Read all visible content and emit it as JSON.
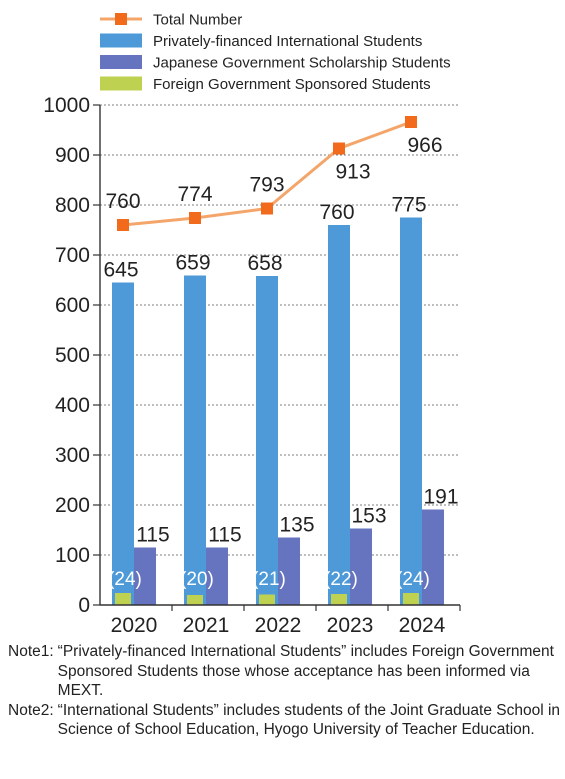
{
  "chart_data": {
    "type": "bar",
    "categories": [
      "2020",
      "2021",
      "2022",
      "2023",
      "2024"
    ],
    "ylim": [
      0,
      1000
    ],
    "yticks": [
      0,
      100,
      200,
      300,
      400,
      500,
      600,
      700,
      800,
      900,
      1000
    ],
    "grid": true,
    "legend_position": "top-left",
    "series": [
      {
        "name": "Total Number",
        "kind": "line",
        "color": "#f4a56a",
        "marker_color": "#f26a1b",
        "values": [
          760,
          774,
          793,
          913,
          966
        ]
      },
      {
        "name": "Privately-financed International Students",
        "kind": "bar",
        "color": "#4e9ad8",
        "values": [
          645,
          659,
          658,
          760,
          775
        ]
      },
      {
        "name": "Japanese Government Scholarship Students",
        "kind": "bar",
        "color": "#6673bf",
        "values": [
          115,
          115,
          135,
          153,
          191
        ]
      },
      {
        "name": "Foreign Government Sponsored Students",
        "kind": "bar",
        "color": "#bfd151",
        "values": [
          24,
          20,
          21,
          22,
          24
        ]
      }
    ],
    "foreign_labels": [
      "(24)",
      "(20)",
      "(21)",
      "(22)",
      "(24)"
    ]
  },
  "notes": [
    {
      "label": "Note1:",
      "text": "“Privately-financed International Students” includes Foreign Government Sponsored Students those whose acceptance has been informed via MEXT."
    },
    {
      "label": "Note2:",
      "text": "“International Students” includes students of the Joint Graduate School in Science of School Education, Hyogo University of Teacher Education."
    }
  ]
}
